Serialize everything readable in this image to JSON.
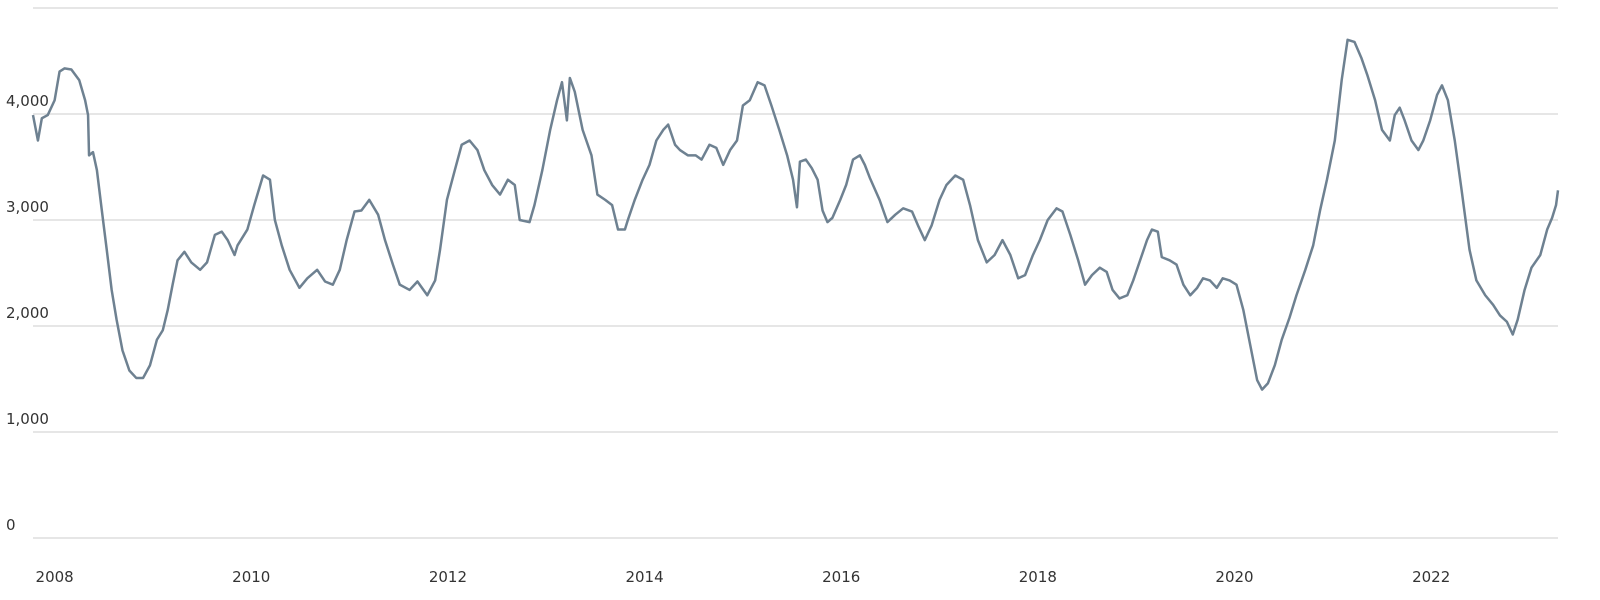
{
  "chart_data": {
    "type": "line",
    "x": [
      2007.78,
      2007.83,
      2007.87,
      2007.93,
      2008.0,
      2008.05,
      2008.1,
      2008.17,
      2008.25,
      2008.31,
      2008.34,
      2008.35,
      2008.39,
      2008.43,
      2008.48,
      2008.53,
      2008.58,
      2008.63,
      2008.69,
      2008.76,
      2008.83,
      2008.9,
      2008.97,
      2009.04,
      2009.1,
      2009.15,
      2009.2,
      2009.25,
      2009.32,
      2009.39,
      2009.48,
      2009.55,
      2009.63,
      2009.7,
      2009.76,
      2009.83,
      2009.86,
      2009.96,
      2010.03,
      2010.12,
      2010.19,
      2010.24,
      2010.31,
      2010.39,
      2010.49,
      2010.57,
      2010.67,
      2010.75,
      2010.83,
      2010.9,
      2010.97,
      2011.05,
      2011.12,
      2011.2,
      2011.29,
      2011.36,
      2011.44,
      2011.51,
      2011.61,
      2011.69,
      2011.79,
      2011.87,
      2011.92,
      2011.99,
      2012.07,
      2012.14,
      2012.22,
      2012.3,
      2012.37,
      2012.45,
      2012.53,
      2012.61,
      2012.68,
      2012.73,
      2012.83,
      2012.88,
      2012.96,
      2013.04,
      2013.11,
      2013.16,
      2013.21,
      2013.24,
      2013.29,
      2013.37,
      2013.46,
      2013.52,
      2013.6,
      2013.67,
      2013.73,
      2013.8,
      2013.83,
      2013.9,
      2013.98,
      2014.05,
      2014.12,
      2014.19,
      2014.24,
      2014.31,
      2014.36,
      2014.44,
      2014.52,
      2014.58,
      2014.66,
      2014.73,
      2014.8,
      2014.87,
      2014.94,
      2015.0,
      2015.07,
      2015.15,
      2015.22,
      2015.29,
      2015.37,
      2015.45,
      2015.51,
      2015.55,
      2015.58,
      2015.64,
      2015.7,
      2015.76,
      2015.81,
      2015.86,
      2015.91,
      2015.99,
      2016.05,
      2016.12,
      2016.19,
      2016.24,
      2016.29,
      2016.39,
      2016.47,
      2016.55,
      2016.63,
      2016.72,
      2016.78,
      2016.85,
      2016.92,
      2017.0,
      2017.07,
      2017.16,
      2017.24,
      2017.31,
      2017.39,
      2017.48,
      2017.56,
      2017.64,
      2017.72,
      2017.8,
      2017.87,
      2017.95,
      2018.02,
      2018.1,
      2018.19,
      2018.25,
      2018.33,
      2018.41,
      2018.48,
      2018.55,
      2018.63,
      2018.7,
      2018.76,
      2018.83,
      2018.91,
      2018.97,
      2019.04,
      2019.11,
      2019.16,
      2019.22,
      2019.26,
      2019.34,
      2019.41,
      2019.48,
      2019.55,
      2019.62,
      2019.68,
      2019.75,
      2019.82,
      2019.88,
      2019.95,
      2020.02,
      2020.09,
      2020.16,
      2020.23,
      2020.28,
      2020.34,
      2020.41,
      2020.48,
      2020.56,
      2020.63,
      2020.72,
      2020.8,
      2020.87,
      2020.94,
      2021.02,
      2021.09,
      2021.15,
      2021.22,
      2021.29,
      2021.35,
      2021.43,
      2021.5,
      2021.58,
      2021.63,
      2021.68,
      2021.73,
      2021.8,
      2021.87,
      2021.92,
      2021.99,
      2022.06,
      2022.11,
      2022.17,
      2022.24,
      2022.31,
      2022.39,
      2022.46,
      2022.55,
      2022.63,
      2022.7,
      2022.77,
      2022.83,
      2022.88,
      2022.95,
      2023.02,
      2023.11,
      2023.18,
      2023.23,
      2023.27,
      2023.29
    ],
    "values": [
      3990,
      3750,
      3960,
      3990,
      4130,
      4400,
      4430,
      4420,
      4320,
      4130,
      3990,
      3610,
      3640,
      3470,
      3090,
      2720,
      2340,
      2060,
      1770,
      1580,
      1510,
      1510,
      1630,
      1870,
      1960,
      2150,
      2390,
      2620,
      2700,
      2600,
      2530,
      2600,
      2860,
      2890,
      2810,
      2670,
      2760,
      2910,
      3140,
      3420,
      3380,
      3000,
      2760,
      2530,
      2360,
      2450,
      2530,
      2420,
      2390,
      2530,
      2810,
      3080,
      3090,
      3190,
      3050,
      2810,
      2580,
      2390,
      2340,
      2420,
      2290,
      2430,
      2720,
      3190,
      3470,
      3710,
      3750,
      3660,
      3470,
      3330,
      3240,
      3380,
      3330,
      3000,
      2980,
      3140,
      3470,
      3850,
      4130,
      4300,
      3940,
      4340,
      4210,
      3850,
      3610,
      3240,
      3190,
      3140,
      2910,
      2910,
      3000,
      3190,
      3380,
      3520,
      3750,
      3850,
      3900,
      3710,
      3660,
      3610,
      3610,
      3570,
      3710,
      3680,
      3520,
      3660,
      3750,
      4080,
      4130,
      4300,
      4270,
      4080,
      3850,
      3610,
      3380,
      3120,
      3550,
      3570,
      3490,
      3380,
      3090,
      2980,
      3020,
      3190,
      3330,
      3570,
      3610,
      3520,
      3400,
      3190,
      2980,
      3050,
      3110,
      3080,
      2950,
      2810,
      2950,
      3190,
      3330,
      3420,
      3380,
      3140,
      2810,
      2600,
      2670,
      2810,
      2670,
      2450,
      2480,
      2670,
      2810,
      3000,
      3110,
      3080,
      2860,
      2620,
      2390,
      2480,
      2550,
      2510,
      2340,
      2260,
      2290,
      2430,
      2620,
      2810,
      2910,
      2890,
      2650,
      2620,
      2580,
      2390,
      2290,
      2360,
      2450,
      2430,
      2360,
      2450,
      2430,
      2390,
      2150,
      1820,
      1490,
      1400,
      1460,
      1630,
      1870,
      2080,
      2290,
      2530,
      2760,
      3090,
      3380,
      3750,
      4320,
      4700,
      4680,
      4530,
      4370,
      4130,
      3850,
      3750,
      3990,
      4060,
      3940,
      3750,
      3660,
      3750,
      3940,
      4180,
      4270,
      4130,
      3750,
      3280,
      2720,
      2430,
      2290,
      2200,
      2100,
      2040,
      1920,
      2060,
      2340,
      2550,
      2670,
      2910,
      3020,
      3140,
      3280
    ],
    "color": "#6e8191",
    "xlim": [
      2007.78,
      2023.29
    ],
    "xticks": [
      2008,
      2010,
      2012,
      2014,
      2016,
      2018,
      2020,
      2022
    ],
    "ylim": [
      0,
      5000
    ],
    "yticks": [
      0,
      {
        "value": 1000,
        "label": "1,000"
      },
      {
        "value": 2000,
        "label": "2,000"
      },
      {
        "value": 3000,
        "label": "3,000"
      },
      {
        "value": 4000,
        "label": "4,000"
      }
    ],
    "grid": true
  }
}
